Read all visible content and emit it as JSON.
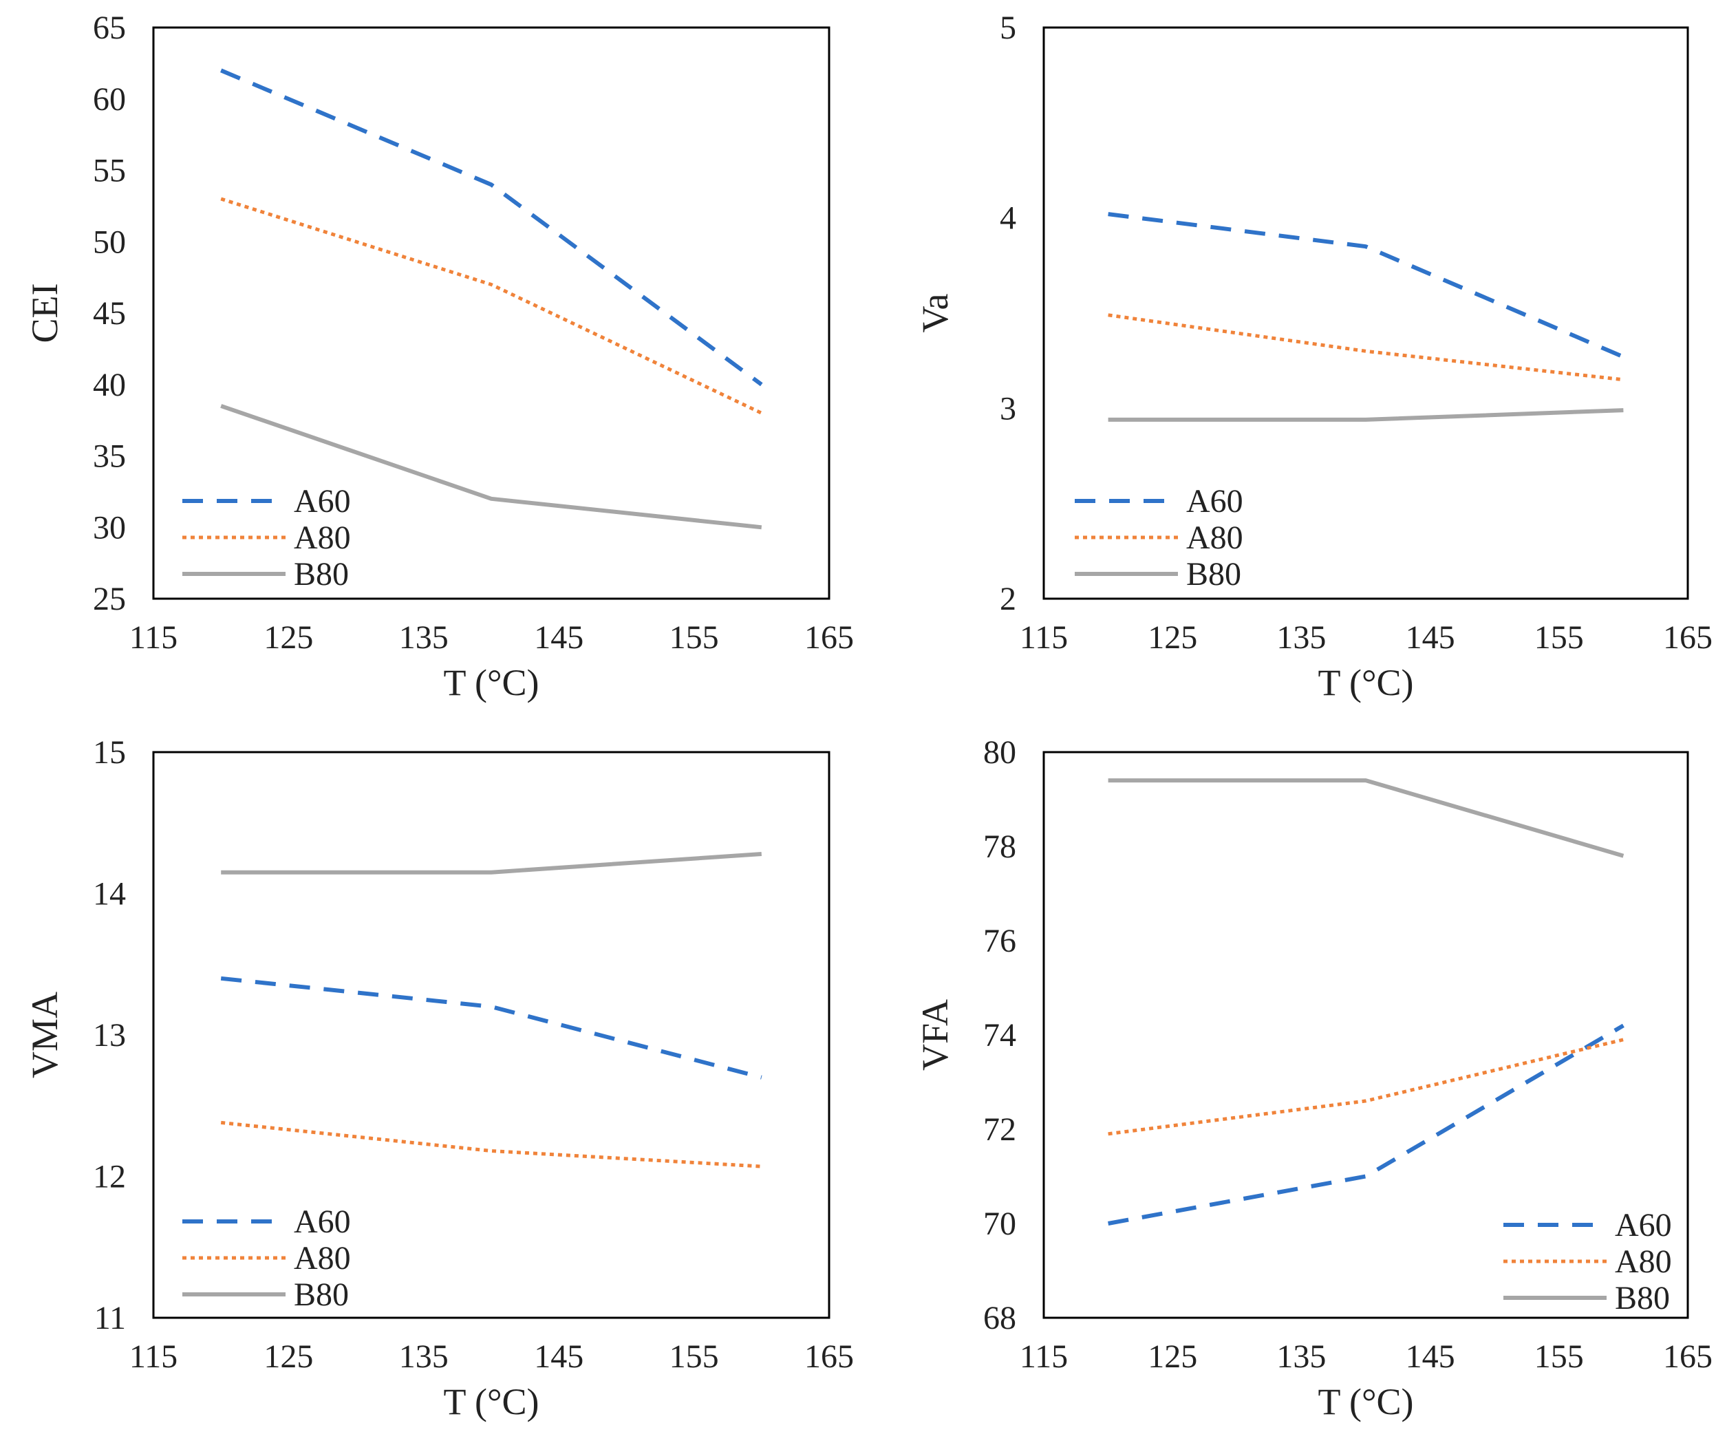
{
  "chart_data": [
    {
      "type": "line",
      "title": "",
      "xlabel": "T (°C)",
      "ylabel": "CEI",
      "xlim": [
        115,
        165
      ],
      "ylim": [
        25,
        65
      ],
      "xticks": [
        "115",
        "125",
        "135",
        "145",
        "155",
        "165"
      ],
      "yticks": [
        "25",
        "30",
        "35",
        "40",
        "45",
        "50",
        "55",
        "60",
        "65"
      ],
      "x": [
        120,
        140,
        160
      ],
      "series": [
        {
          "name": "A60",
          "values": [
            62,
            54,
            40
          ],
          "color": "#2F73C9",
          "style": "dashed"
        },
        {
          "name": "A80",
          "values": [
            53,
            47,
            38
          ],
          "color": "#F0833A",
          "style": "dotted"
        },
        {
          "name": "B80",
          "values": [
            38.5,
            32,
            30
          ],
          "color": "#A6A6A6",
          "style": "solid"
        }
      ],
      "legend": "bottom-left",
      "grid": false
    },
    {
      "type": "line",
      "title": "",
      "xlabel": "T (°C)",
      "ylabel": "Va",
      "xlim": [
        115,
        165
      ],
      "ylim": [
        2,
        5
      ],
      "xticks": [
        "115",
        "125",
        "135",
        "145",
        "155",
        "165"
      ],
      "yticks": [
        "2",
        "3",
        "4",
        "5"
      ],
      "x": [
        120,
        140,
        160
      ],
      "series": [
        {
          "name": "A60",
          "values": [
            4.02,
            3.85,
            3.27
          ],
          "color": "#2F73C9",
          "style": "dashed"
        },
        {
          "name": "A80",
          "values": [
            3.49,
            3.3,
            3.15
          ],
          "color": "#F0833A",
          "style": "dotted"
        },
        {
          "name": "B80",
          "values": [
            2.94,
            2.94,
            2.99
          ],
          "color": "#A6A6A6",
          "style": "solid"
        }
      ],
      "legend": "bottom-left",
      "grid": false
    },
    {
      "type": "line",
      "title": "",
      "xlabel": "T (°C)",
      "ylabel": "VMA",
      "xlim": [
        115,
        165
      ],
      "ylim": [
        11,
        15
      ],
      "xticks": [
        "115",
        "125",
        "135",
        "145",
        "155",
        "165"
      ],
      "yticks": [
        "11",
        "12",
        "13",
        "14",
        "15"
      ],
      "x": [
        120,
        140,
        160
      ],
      "series": [
        {
          "name": "A60",
          "values": [
            13.4,
            13.2,
            12.7
          ],
          "color": "#2F73C9",
          "style": "dashed"
        },
        {
          "name": "A80",
          "values": [
            12.38,
            12.18,
            12.07
          ],
          "color": "#F0833A",
          "style": "dotted"
        },
        {
          "name": "B80",
          "values": [
            14.15,
            14.15,
            14.28
          ],
          "color": "#A6A6A6",
          "style": "solid"
        }
      ],
      "legend": "bottom-left",
      "grid": false
    },
    {
      "type": "line",
      "title": "",
      "xlabel": "T (°C)",
      "ylabel": "VFA",
      "xlim": [
        115,
        165
      ],
      "ylim": [
        68,
        80
      ],
      "xticks": [
        "115",
        "125",
        "135",
        "145",
        "155",
        "165"
      ],
      "yticks": [
        "68",
        "70",
        "72",
        "74",
        "76",
        "78",
        "80"
      ],
      "x": [
        120,
        140,
        160
      ],
      "series": [
        {
          "name": "A60",
          "values": [
            70,
            71,
            74.2
          ],
          "color": "#2F73C9",
          "style": "dashed"
        },
        {
          "name": "A80",
          "values": [
            71.9,
            72.6,
            73.9
          ],
          "color": "#F0833A",
          "style": "dotted"
        },
        {
          "name": "B80",
          "values": [
            79.4,
            79.4,
            77.8
          ],
          "color": "#A6A6A6",
          "style": "solid"
        }
      ],
      "legend": "bottom-right",
      "grid": false
    }
  ]
}
